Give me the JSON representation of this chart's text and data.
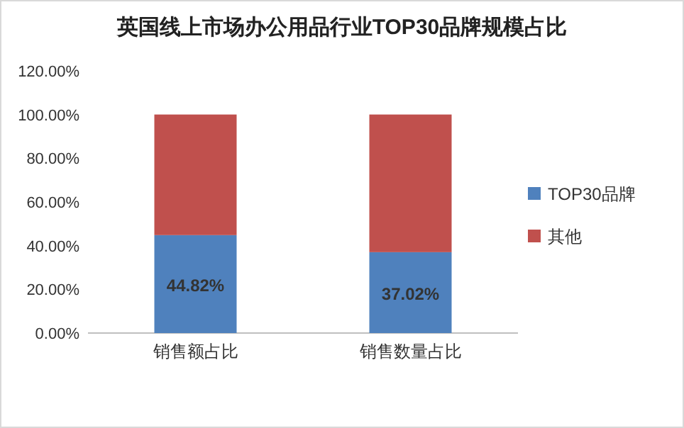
{
  "chart_data": {
    "type": "bar",
    "title": "英国线上市场办公用品行业TOP30品牌规模占比",
    "categories": [
      "销售额占比",
      "销售数量占比"
    ],
    "stacked": true,
    "series": [
      {
        "name": "TOP30品牌",
        "color": "#4f81bd",
        "values": [
          44.82,
          37.02
        ],
        "value_labels": [
          "44.82%",
          "37.02%"
        ]
      },
      {
        "name": "其他",
        "color": "#c0504d",
        "values": [
          55.2,
          63.0
        ]
      }
    ],
    "ylim": [
      0,
      120
    ],
    "yticks": [
      {
        "value": 0,
        "label": "0.00%"
      },
      {
        "value": 20,
        "label": "20.00%"
      },
      {
        "value": 40,
        "label": "40.00%"
      },
      {
        "value": 60,
        "label": "60.00%"
      },
      {
        "value": 80,
        "label": "80.00%"
      },
      {
        "value": 100,
        "label": "100.00%"
      },
      {
        "value": 120,
        "label": "120.00%"
      }
    ],
    "legend": "right"
  }
}
